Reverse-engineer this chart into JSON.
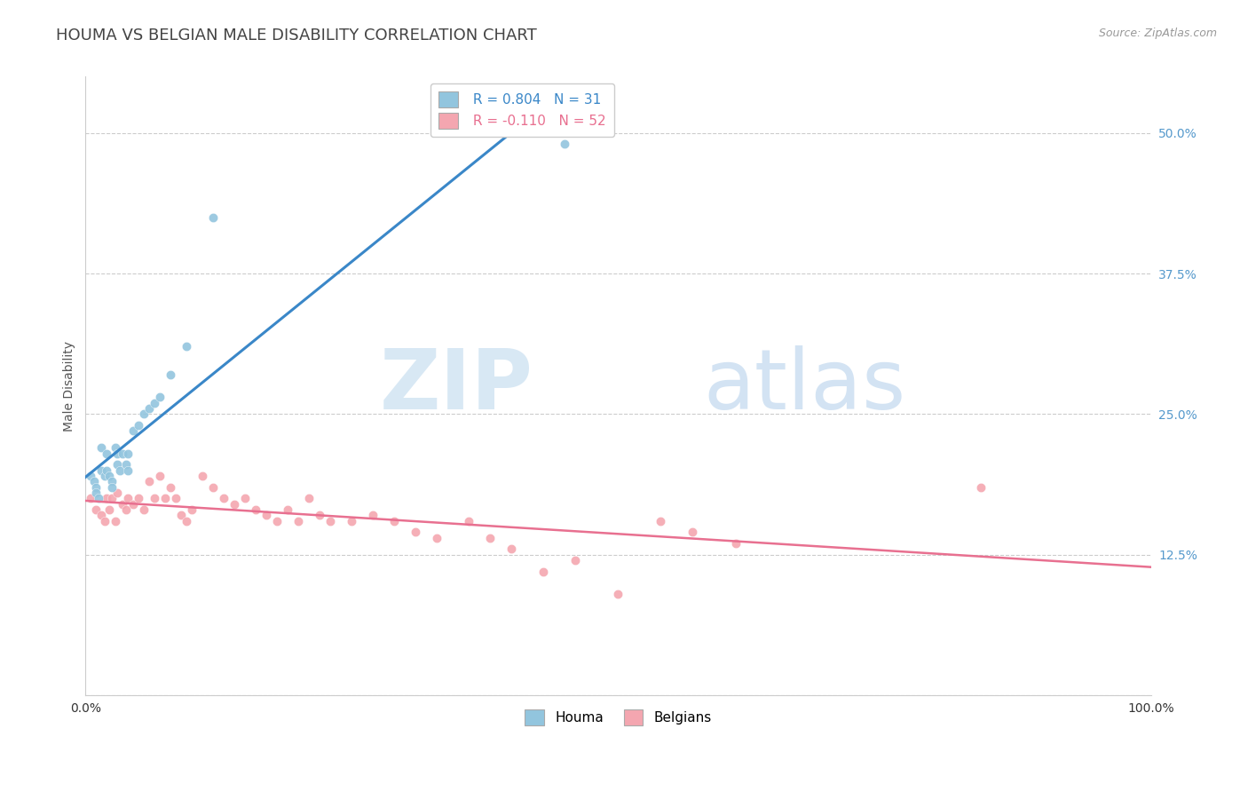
{
  "title": "HOUMA VS BELGIAN MALE DISABILITY CORRELATION CHART",
  "source": "Source: ZipAtlas.com",
  "ylabel": "Male Disability",
  "xlabel": "",
  "xlim": [
    0.0,
    1.0
  ],
  "ylim": [
    0.0,
    0.55
  ],
  "ytick_vals": [
    0.0,
    0.125,
    0.25,
    0.375,
    0.5
  ],
  "ytick_labels": [
    "",
    "12.5%",
    "25.0%",
    "37.5%",
    "50.0%"
  ],
  "xtick_vals": [
    0.0,
    1.0
  ],
  "xtick_labels": [
    "0.0%",
    "100.0%"
  ],
  "legend_labels": [
    "Houma",
    "Belgians"
  ],
  "houma_color": "#92c5de",
  "belgian_color": "#f4a6b0",
  "houma_line_color": "#3a87c8",
  "belgian_line_color": "#e87090",
  "R_houma": 0.804,
  "N_houma": 31,
  "R_belgian": -0.11,
  "N_belgian": 52,
  "background_color": "#ffffff",
  "grid_color": "#cccccc",
  "title_color": "#444444",
  "houma_x": [
    0.005,
    0.008,
    0.01,
    0.01,
    0.012,
    0.015,
    0.015,
    0.018,
    0.02,
    0.02,
    0.022,
    0.025,
    0.025,
    0.028,
    0.03,
    0.03,
    0.032,
    0.035,
    0.038,
    0.04,
    0.04,
    0.045,
    0.05,
    0.055,
    0.06,
    0.065,
    0.07,
    0.08,
    0.095,
    0.12,
    0.45
  ],
  "houma_y": [
    0.195,
    0.19,
    0.185,
    0.18,
    0.175,
    0.22,
    0.2,
    0.195,
    0.215,
    0.2,
    0.195,
    0.19,
    0.185,
    0.22,
    0.215,
    0.205,
    0.2,
    0.215,
    0.205,
    0.215,
    0.2,
    0.235,
    0.24,
    0.25,
    0.255,
    0.26,
    0.265,
    0.285,
    0.31,
    0.425,
    0.49
  ],
  "belgian_x": [
    0.005,
    0.01,
    0.015,
    0.018,
    0.02,
    0.022,
    0.025,
    0.028,
    0.03,
    0.035,
    0.038,
    0.04,
    0.045,
    0.05,
    0.055,
    0.06,
    0.065,
    0.07,
    0.075,
    0.08,
    0.085,
    0.09,
    0.095,
    0.1,
    0.11,
    0.12,
    0.13,
    0.14,
    0.15,
    0.16,
    0.17,
    0.18,
    0.19,
    0.2,
    0.21,
    0.22,
    0.23,
    0.25,
    0.27,
    0.29,
    0.31,
    0.33,
    0.36,
    0.38,
    0.4,
    0.43,
    0.46,
    0.5,
    0.54,
    0.57,
    0.61,
    0.84
  ],
  "belgian_y": [
    0.175,
    0.165,
    0.16,
    0.155,
    0.175,
    0.165,
    0.175,
    0.155,
    0.18,
    0.17,
    0.165,
    0.175,
    0.17,
    0.175,
    0.165,
    0.19,
    0.175,
    0.195,
    0.175,
    0.185,
    0.175,
    0.16,
    0.155,
    0.165,
    0.195,
    0.185,
    0.175,
    0.17,
    0.175,
    0.165,
    0.16,
    0.155,
    0.165,
    0.155,
    0.175,
    0.16,
    0.155,
    0.155,
    0.16,
    0.155,
    0.145,
    0.14,
    0.155,
    0.14,
    0.13,
    0.11,
    0.12,
    0.09,
    0.155,
    0.145,
    0.135,
    0.185
  ],
  "watermark_zip": "ZIP",
  "watermark_atlas": "atlas",
  "title_fontsize": 13,
  "label_fontsize": 10,
  "tick_fontsize": 10,
  "legend_fontsize": 11
}
